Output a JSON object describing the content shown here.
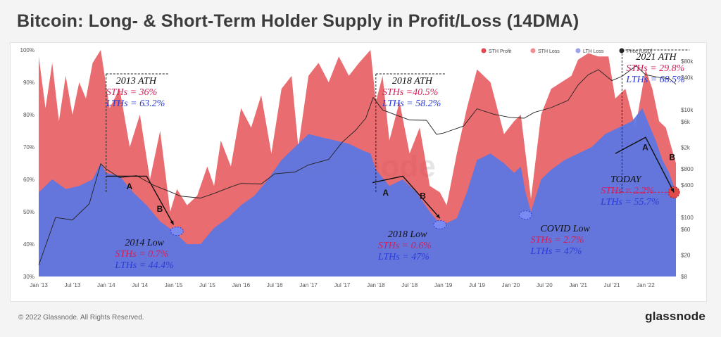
{
  "page": {
    "title": "Bitcoin: Long- & Short-Term Holder Supply in Profit/Loss (14DMA)",
    "copyright": "© 2022 Glassnode. All Rights Reserved.",
    "brand": "glassnode",
    "watermark": "glassnode"
  },
  "colors": {
    "sth_profit": "#e3474c",
    "sth_loss": "#f28d8f",
    "lth_loss": "#9ba3ea",
    "lth_profit": "#5d77e0",
    "price": "#222222",
    "annotation_red": "#d21f55",
    "annotation_blue": "#2b3bd8"
  },
  "chart_data": {
    "type": "area",
    "title": "Bitcoin: Long- & Short-Term Holder Supply in Profit/Loss (14DMA)",
    "legend": {
      "placement": "top-right",
      "entries": [
        {
          "label": "STH Profit",
          "color": "#e3474c"
        },
        {
          "label": "STH Loss",
          "color": "#f28d8f"
        },
        {
          "label": "LTH Loss",
          "color": "#9ba3ea"
        },
        {
          "label": "Price [USD]",
          "color": "#222222"
        }
      ]
    },
    "x_ticks": [
      "Jan '13",
      "Jul '13",
      "Jan '14",
      "Jul '14",
      "Jan '15",
      "Jul '15",
      "Jan '16",
      "Jul '16",
      "Jan '17",
      "Jul '17",
      "Jan '18",
      "Jul '18",
      "Jan '19",
      "Jul '19",
      "Jan '20",
      "Jul '20",
      "Jan '21",
      "Jul '21",
      "Jan '22"
    ],
    "xlim": [
      2013.0,
      2022.45
    ],
    "y_left": {
      "ticks": [
        "30%",
        "40%",
        "50%",
        "60%",
        "70%",
        "80%",
        "90%",
        "100%"
      ],
      "range": [
        30,
        100
      ]
    },
    "y_right": {
      "ticks": [
        "$8",
        "$20",
        "$60",
        "$100",
        "$400",
        "$800",
        "$2k",
        "$6k",
        "$10k",
        "$40k",
        "$80k"
      ],
      "values": [
        8,
        20,
        60,
        100,
        400,
        800,
        2000,
        6000,
        10000,
        40000,
        80000
      ],
      "scale": "log",
      "range": [
        8,
        130000
      ]
    },
    "grid": false,
    "series": [
      {
        "name": "LTH Supply in Profit",
        "x": [
          2013.0,
          2013.2,
          2013.4,
          2013.6,
          2013.8,
          2013.92,
          2014.0,
          2014.2,
          2014.4,
          2014.6,
          2014.8,
          2015.0,
          2015.2,
          2015.4,
          2015.6,
          2015.8,
          2016.0,
          2016.2,
          2016.4,
          2016.6,
          2016.8,
          2017.0,
          2017.2,
          2017.4,
          2017.6,
          2017.8,
          2017.92,
          2018.0,
          2018.2,
          2018.4,
          2018.6,
          2018.8,
          2018.92,
          2019.0,
          2019.2,
          2019.35,
          2019.5,
          2019.7,
          2019.9,
          2020.05,
          2020.15,
          2020.22,
          2020.3,
          2020.45,
          2020.6,
          2020.8,
          2021.0,
          2021.2,
          2021.4,
          2021.6,
          2021.8,
          2021.95,
          2022.05,
          2022.15,
          2022.25,
          2022.35,
          2022.45
        ],
        "values": [
          56,
          60,
          57,
          58,
          60,
          65,
          62,
          61,
          56,
          52,
          47,
          44,
          40,
          40,
          45,
          48,
          52,
          55,
          60,
          66,
          70,
          74,
          73,
          72,
          71,
          69,
          68,
          63,
          58,
          60,
          56,
          50,
          47,
          46,
          48,
          56,
          66,
          68,
          65,
          62,
          64,
          56,
          50,
          60,
          63,
          66,
          68,
          70,
          74,
          76,
          78,
          82,
          77,
          72,
          66,
          62,
          56
        ]
      },
      {
        "name": "STH Supply in Profit (top of stack)",
        "x": [
          2013.0,
          2013.1,
          2013.2,
          2013.3,
          2013.4,
          2013.5,
          2013.6,
          2013.7,
          2013.8,
          2013.92,
          2014.05,
          2014.2,
          2014.35,
          2014.5,
          2014.65,
          2014.8,
          2014.95,
          2015.05,
          2015.2,
          2015.35,
          2015.5,
          2015.6,
          2015.7,
          2015.85,
          2016.0,
          2016.15,
          2016.3,
          2016.45,
          2016.6,
          2016.75,
          2016.85,
          2017.0,
          2017.15,
          2017.3,
          2017.45,
          2017.6,
          2017.75,
          2017.92,
          2018.0,
          2018.1,
          2018.2,
          2018.35,
          2018.5,
          2018.65,
          2018.8,
          2018.95,
          2019.05,
          2019.2,
          2019.35,
          2019.5,
          2019.7,
          2019.9,
          2020.05,
          2020.15,
          2020.22,
          2020.3,
          2020.45,
          2020.6,
          2020.75,
          2020.9,
          2021.0,
          2021.15,
          2021.3,
          2021.45,
          2021.55,
          2021.7,
          2021.85,
          2022.0,
          2022.1,
          2022.2,
          2022.3,
          2022.45
        ],
        "values": [
          98,
          82,
          96,
          78,
          92,
          80,
          90,
          85,
          96,
          100,
          82,
          88,
          70,
          80,
          60,
          75,
          50,
          57,
          52,
          55,
          64,
          58,
          72,
          64,
          82,
          76,
          86,
          68,
          88,
          92,
          70,
          92,
          96,
          90,
          98,
          92,
          96,
          100,
          84,
          92,
          72,
          84,
          68,
          76,
          58,
          56,
          52,
          68,
          82,
          94,
          90,
          74,
          78,
          80,
          68,
          54,
          80,
          88,
          90,
          92,
          97,
          99,
          98,
          98,
          85,
          88,
          76,
          94,
          88,
          78,
          76,
          65
        ]
      },
      {
        "name": "Price [USD]",
        "x": [
          2013.0,
          2013.25,
          2013.5,
          2013.75,
          2013.92,
          2014.0,
          2014.2,
          2014.45,
          2014.7,
          2014.95,
          2015.1,
          2015.4,
          2015.6,
          2015.85,
          2016.0,
          2016.3,
          2016.5,
          2016.8,
          2017.0,
          2017.3,
          2017.5,
          2017.7,
          2017.85,
          2017.96,
          2018.1,
          2018.3,
          2018.5,
          2018.75,
          2018.9,
          2019.0,
          2019.3,
          2019.5,
          2019.75,
          2020.0,
          2020.2,
          2020.35,
          2020.6,
          2020.85,
          2021.0,
          2021.15,
          2021.3,
          2021.5,
          2021.65,
          2021.86,
          2022.0,
          2022.2,
          2022.35,
          2022.45
        ],
        "values": [
          13,
          100,
          90,
          180,
          1000,
          800,
          550,
          600,
          400,
          300,
          250,
          230,
          280,
          370,
          430,
          420,
          650,
          700,
          950,
          1200,
          2500,
          4200,
          7000,
          17000,
          10000,
          8000,
          6500,
          6400,
          3500,
          3700,
          5000,
          10500,
          8300,
          7200,
          7000,
          9000,
          11000,
          15000,
          29000,
          45000,
          56000,
          35000,
          42000,
          66000,
          45000,
          40000,
          38000,
          30000
        ]
      }
    ],
    "annotations": [
      {
        "title": "2013 ATH",
        "sth": "STHs = 36%",
        "lth": "LTHs = 63.2%"
      },
      {
        "title": "2018 ATH",
        "sth": "STHs =40.5%",
        "lth": "LTHs = 58.2%"
      },
      {
        "title": "2021 ATH",
        "sth": "STHs = 29.8%",
        "lth": "LTHs = 68.5%"
      },
      {
        "title": "2014 Low",
        "sth": "STHs = 0.7%",
        "lth": "LTHs = 44.4%"
      },
      {
        "title": "2018 Low",
        "sth": "STHs = 0.6%",
        "lth": "LTHs = 47%"
      },
      {
        "title": "COVID Low",
        "sth": "STHs = 2.7%",
        "lth": "LTHs = 47%"
      },
      {
        "title": "TODAY",
        "sth": "STHs = 2.2%",
        "lth": "LTHs = 55.7%"
      }
    ],
    "point_labels": [
      "A",
      "B"
    ]
  }
}
